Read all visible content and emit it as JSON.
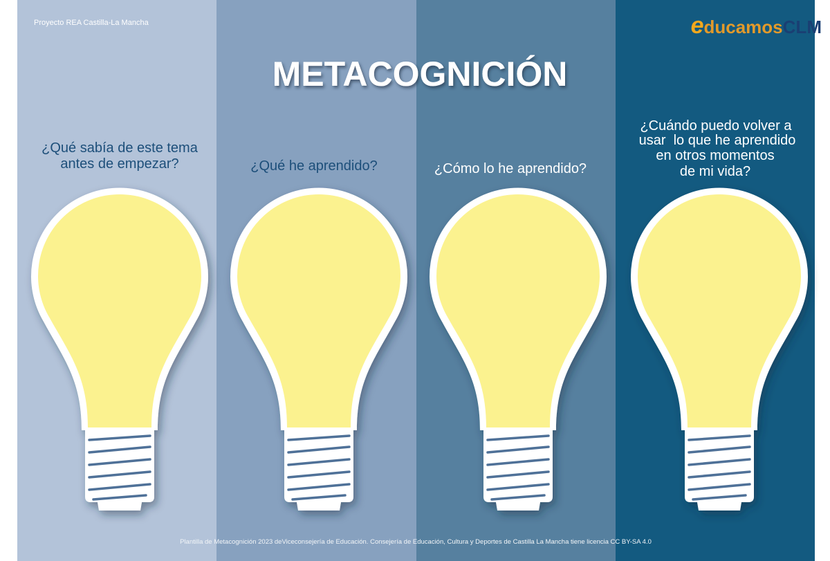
{
  "header": {
    "project": "Proyecto REA Castilla-La Mancha",
    "logo": {
      "initial": "e",
      "word": "ducamos",
      "brand": "CLM"
    }
  },
  "title": "METACOGNICIÓN",
  "questions": [
    {
      "lines": [
        "¿Qué sabía de este tema",
        "antes de empezar?"
      ]
    },
    {
      "lines": [
        "¿Qué he aprendido?"
      ]
    },
    {
      "lines": [
        "¿Cómo lo he aprendido?"
      ]
    },
    {
      "lines": [
        "¿Cuándo puedo volver a",
        "usar  lo que he aprendido",
        "en otros momentos",
        "de mi vida?"
      ]
    }
  ],
  "footer": "Plantilla de Metacognición 2023 deViceconsejería de Educación. Consejería de Educación, Cultura y Deportes de Castilla La Mancha tiene licencia CC BY-SA 4.0"
}
